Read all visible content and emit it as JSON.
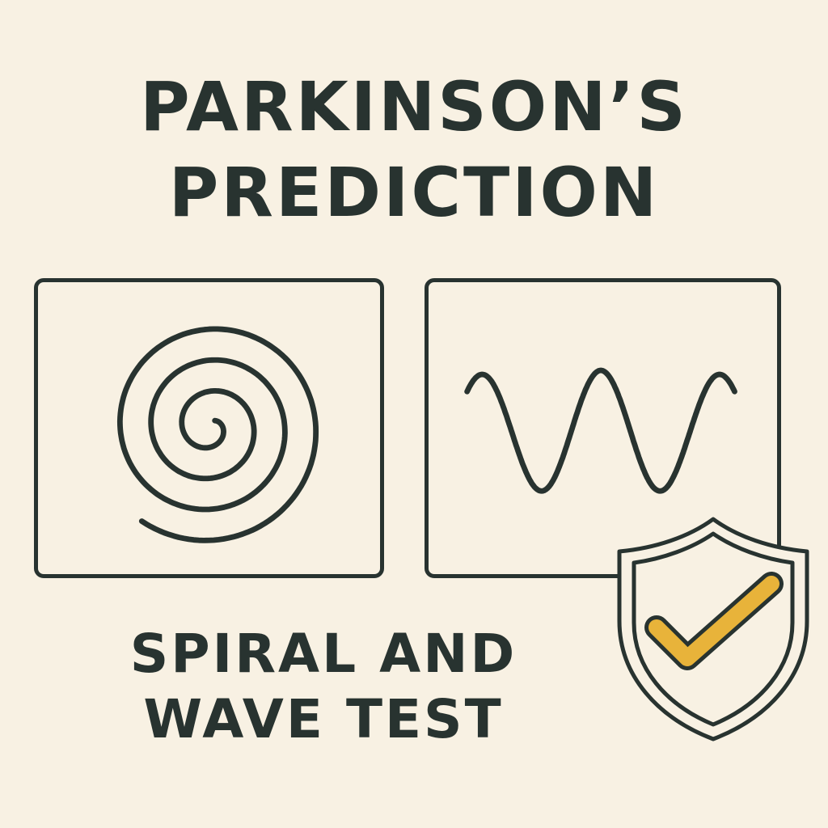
{
  "title": {
    "line1": "PARKINSON’S",
    "line2": "PREDICTION"
  },
  "subtitle": {
    "line1": "SPIRAL AND",
    "line2": "WAVE TEST"
  },
  "icons": {
    "spiral": "spiral-icon",
    "wave": "wave-icon",
    "shield": "shield-check-icon"
  },
  "colors": {
    "background": "#f8f1e3",
    "ink": "#283330",
    "accent": "#e8b33a"
  }
}
